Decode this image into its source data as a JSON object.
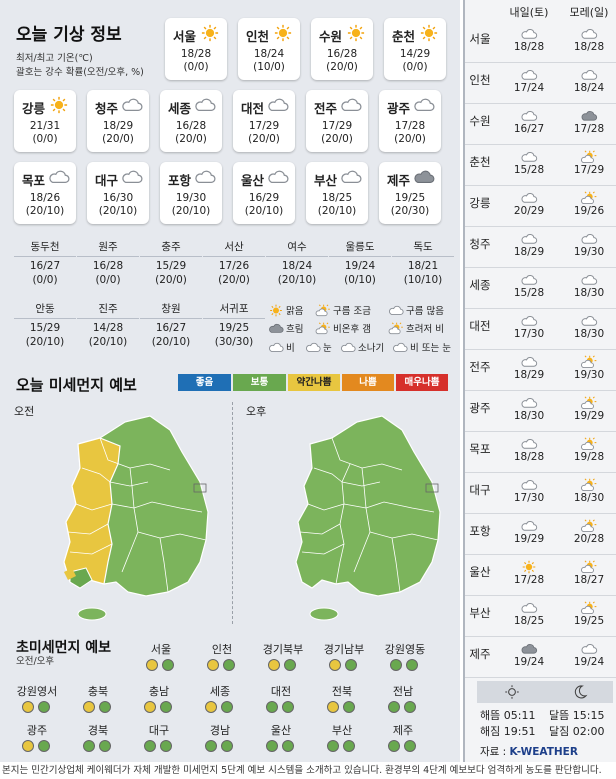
{
  "header": {
    "title": "오늘 기상 정보",
    "line1": "최저/최고 기온(℃)",
    "line2": "괄호는 강수 확률(오전/오후, %)"
  },
  "cards": [
    {
      "city": "서울",
      "temp": "18/28",
      "rain": "(0/0)",
      "icon": "sun-icon"
    },
    {
      "city": "인천",
      "temp": "18/24",
      "rain": "(10/0)",
      "icon": "sun-icon"
    },
    {
      "city": "수원",
      "temp": "16/28",
      "rain": "(20/0)",
      "icon": "sun-icon"
    },
    {
      "city": "춘천",
      "temp": "14/29",
      "rain": "(0/0)",
      "icon": "sun-icon"
    },
    {
      "city": "강릉",
      "temp": "21/31",
      "rain": "(0/0)",
      "icon": "sun-icon"
    },
    {
      "city": "청주",
      "temp": "18/29",
      "rain": "(20/0)",
      "icon": "cloud-icon"
    },
    {
      "city": "세종",
      "temp": "16/28",
      "rain": "(20/0)",
      "icon": "cloud-icon"
    },
    {
      "city": "대전",
      "temp": "17/29",
      "rain": "(20/0)",
      "icon": "cloud-icon"
    },
    {
      "city": "전주",
      "temp": "17/29",
      "rain": "(20/0)",
      "icon": "cloud-icon"
    },
    {
      "city": "광주",
      "temp": "17/28",
      "rain": "(20/0)",
      "icon": "cloud-icon"
    },
    {
      "city": "목포",
      "temp": "18/26",
      "rain": "(20/10)",
      "icon": "cloud-icon"
    },
    {
      "city": "대구",
      "temp": "16/30",
      "rain": "(20/10)",
      "icon": "cloud-icon"
    },
    {
      "city": "포항",
      "temp": "19/30",
      "rain": "(20/10)",
      "icon": "cloud-icon"
    },
    {
      "city": "울산",
      "temp": "16/29",
      "rain": "(20/10)",
      "icon": "cloud-icon"
    },
    {
      "city": "부산",
      "temp": "18/25",
      "rain": "(20/10)",
      "icon": "cloud-icon"
    },
    {
      "city": "제주",
      "temp": "19/25",
      "rain": "(20/30)",
      "icon": "dark-cloud-icon"
    }
  ],
  "smallRow1": [
    {
      "city": "동두천",
      "temp": "16/27",
      "rain": "(0/0)"
    },
    {
      "city": "원주",
      "temp": "16/28",
      "rain": "(0/0)"
    },
    {
      "city": "충주",
      "temp": "15/29",
      "rain": "(20/0)"
    },
    {
      "city": "서산",
      "temp": "17/26",
      "rain": "(20/0)"
    },
    {
      "city": "여수",
      "temp": "18/24",
      "rain": "(20/10)"
    },
    {
      "city": "울릉도",
      "temp": "19/24",
      "rain": "(0/10)"
    },
    {
      "city": "독도",
      "temp": "18/21",
      "rain": "(10/10)"
    }
  ],
  "smallRow2": [
    {
      "city": "안동",
      "temp": "15/29",
      "rain": "(20/10)"
    },
    {
      "city": "진주",
      "temp": "14/28",
      "rain": "(20/10)"
    },
    {
      "city": "창원",
      "temp": "16/27",
      "rain": "(20/10)"
    },
    {
      "city": "서귀포",
      "temp": "19/25",
      "rain": "(30/30)"
    }
  ],
  "legend": {
    "clear": "맑음",
    "partly": "구름 조금",
    "mostly": "구름 많음",
    "cloudy": "흐림",
    "rainAfterCloudy": "비온후 갬",
    "cloudyRain": "흐려저 비",
    "rain": "비",
    "snow": "눈",
    "shower": "소나기",
    "rainSnow": "비 또는 눈"
  },
  "dust": {
    "title": "오늘 미세먼지 예보",
    "am": "오전",
    "pm": "오후",
    "scale": [
      {
        "label": "좋음",
        "color": "#1f6fb5"
      },
      {
        "label": "보통",
        "color": "#69a84f"
      },
      {
        "label": "약간나쁨",
        "color": "#e8c640"
      },
      {
        "label": "나쁨",
        "color": "#e3891f"
      },
      {
        "label": "매우나쁨",
        "color": "#d6302b"
      }
    ]
  },
  "pm": {
    "title": "초미세먼지 예보",
    "sub": "오전/오후",
    "regions": [
      {
        "name": "서울",
        "am": "#e8c640",
        "pm": "#69a84f"
      },
      {
        "name": "인천",
        "am": "#e8c640",
        "pm": "#69a84f"
      },
      {
        "name": "경기북부",
        "am": "#e8c640",
        "pm": "#69a84f"
      },
      {
        "name": "경기남부",
        "am": "#e8c640",
        "pm": "#69a84f"
      },
      {
        "name": "강원영동",
        "am": "#69a84f",
        "pm": "#69a84f"
      },
      {
        "name": "강원영서",
        "am": "#e8c640",
        "pm": "#69a84f"
      },
      {
        "name": "충북",
        "am": "#e8c640",
        "pm": "#69a84f"
      },
      {
        "name": "충남",
        "am": "#e8c640",
        "pm": "#69a84f"
      },
      {
        "name": "세종",
        "am": "#e8c640",
        "pm": "#69a84f"
      },
      {
        "name": "대전",
        "am": "#69a84f",
        "pm": "#69a84f"
      },
      {
        "name": "전북",
        "am": "#e8c640",
        "pm": "#69a84f"
      },
      {
        "name": "전남",
        "am": "#69a84f",
        "pm": "#69a84f"
      },
      {
        "name": "광주",
        "am": "#e8c640",
        "pm": "#69a84f"
      },
      {
        "name": "경북",
        "am": "#69a84f",
        "pm": "#69a84f"
      },
      {
        "name": "대구",
        "am": "#69a84f",
        "pm": "#69a84f"
      },
      {
        "name": "경남",
        "am": "#69a84f",
        "pm": "#69a84f"
      },
      {
        "name": "울산",
        "am": "#69a84f",
        "pm": "#69a84f"
      },
      {
        "name": "부산",
        "am": "#69a84f",
        "pm": "#69a84f"
      },
      {
        "name": "제주",
        "am": "#69a84f",
        "pm": "#69a84f"
      }
    ]
  },
  "forecast": {
    "head1": "내일(토)",
    "head2": "모레(일)",
    "rows": [
      {
        "city": "서울",
        "d1": {
          "icon": "cloud-icon",
          "t": "18/28"
        },
        "d2": {
          "icon": "cloud-icon",
          "t": "18/28"
        }
      },
      {
        "city": "인천",
        "d1": {
          "icon": "cloud-icon",
          "t": "17/24"
        },
        "d2": {
          "icon": "cloud-icon",
          "t": "18/24"
        }
      },
      {
        "city": "수원",
        "d1": {
          "icon": "cloud-icon",
          "t": "16/27"
        },
        "d2": {
          "icon": "dark-cloud-icon",
          "t": "17/28"
        }
      },
      {
        "city": "춘천",
        "d1": {
          "icon": "cloud-icon",
          "t": "15/28"
        },
        "d2": {
          "icon": "sun-cloud-icon",
          "t": "17/29"
        }
      },
      {
        "city": "강릉",
        "d1": {
          "icon": "cloud-icon",
          "t": "20/29"
        },
        "d2": {
          "icon": "sun-cloud-icon",
          "t": "19/26"
        }
      },
      {
        "city": "청주",
        "d1": {
          "icon": "cloud-icon",
          "t": "18/29"
        },
        "d2": {
          "icon": "cloud-icon",
          "t": "19/30"
        }
      },
      {
        "city": "세종",
        "d1": {
          "icon": "cloud-icon",
          "t": "15/28"
        },
        "d2": {
          "icon": "cloud-icon",
          "t": "18/30"
        }
      },
      {
        "city": "대전",
        "d1": {
          "icon": "cloud-icon",
          "t": "17/30"
        },
        "d2": {
          "icon": "cloud-icon",
          "t": "18/30"
        }
      },
      {
        "city": "전주",
        "d1": {
          "icon": "cloud-icon",
          "t": "18/29"
        },
        "d2": {
          "icon": "sun-cloud-icon",
          "t": "19/30"
        }
      },
      {
        "city": "광주",
        "d1": {
          "icon": "cloud-icon",
          "t": "18/30"
        },
        "d2": {
          "icon": "sun-cloud-icon",
          "t": "19/29"
        }
      },
      {
        "city": "목포",
        "d1": {
          "icon": "cloud-icon",
          "t": "18/28"
        },
        "d2": {
          "icon": "sun-cloud-icon",
          "t": "19/28"
        }
      },
      {
        "city": "대구",
        "d1": {
          "icon": "cloud-icon",
          "t": "17/30"
        },
        "d2": {
          "icon": "sun-cloud-icon",
          "t": "18/30"
        }
      },
      {
        "city": "포항",
        "d1": {
          "icon": "cloud-icon",
          "t": "19/29"
        },
        "d2": {
          "icon": "sun-cloud-icon",
          "t": "20/28"
        }
      },
      {
        "city": "울산",
        "d1": {
          "icon": "sun-icon",
          "t": "17/28"
        },
        "d2": {
          "icon": "sun-cloud-icon",
          "t": "18/27"
        }
      },
      {
        "city": "부산",
        "d1": {
          "icon": "cloud-icon",
          "t": "18/25"
        },
        "d2": {
          "icon": "sun-cloud-icon",
          "t": "19/25"
        }
      },
      {
        "city": "제주",
        "d1": {
          "icon": "dark-cloud-icon",
          "t": "19/24"
        },
        "d2": {
          "icon": "cloud-icon",
          "t": "19/24"
        }
      }
    ]
  },
  "sun": {
    "rise": "해뜸 05:11",
    "set": "해짐 19:51",
    "moonrise": "달뜸 15:15",
    "moonset": "달짐 02:00"
  },
  "source": {
    "label": "자료 :",
    "brand": "K-WEATHER"
  },
  "footer": "본지는 민간기상업체 케이웨더가 자체 개발한 미세먼지 5단계 예보 시스템을 소개하고 있습니다. 환경부의 4단계 예보보다 엄격하게 농도를 판단합니다."
}
